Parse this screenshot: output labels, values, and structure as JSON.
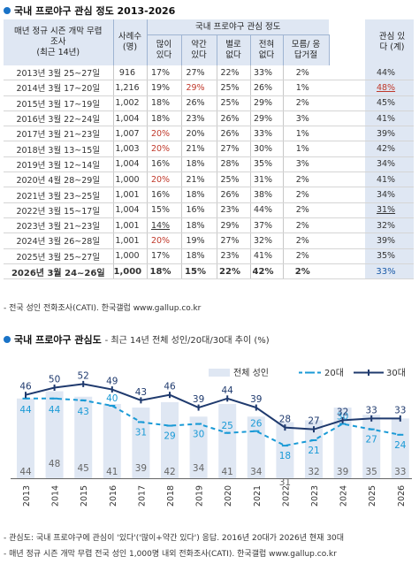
{
  "table_title": "국내 프로야구 관심 정도 2013-2026",
  "table_headers": {
    "period": "매년 정규 시즌 개막 무렵 조사",
    "period_sub": "(최근 14년)",
    "sample": "사례수 (명)",
    "group": "국내 프로야구 관심 정도",
    "cols": [
      "많이 있다",
      "약간 있다",
      "별로 없다",
      "전혀 없다",
      "모름/ 응답거절"
    ],
    "interest": "관심 있다 (계)"
  },
  "table_rows": [
    {
      "period": "2013년 3월 25~27일",
      "n": "916",
      "a": "17%",
      "b": "27%",
      "c": "22%",
      "d": "33%",
      "e": "2%",
      "sum": "44%"
    },
    {
      "period": "2014년 3월 17~20일",
      "n": "1,216",
      "a": "19%",
      "b": "29%",
      "c": "25%",
      "d": "26%",
      "e": "1%",
      "sum": "48%"
    },
    {
      "period": "2015년 3월 17~19일",
      "n": "1,002",
      "a": "18%",
      "b": "26%",
      "c": "25%",
      "d": "29%",
      "e": "2%",
      "sum": "45%"
    },
    {
      "period": "2016년 3월 22~24일",
      "n": "1,004",
      "a": "18%",
      "b": "23%",
      "c": "26%",
      "d": "29%",
      "e": "3%",
      "sum": "41%"
    },
    {
      "period": "2017년 3월 21~23일",
      "n": "1,007",
      "a": "20%",
      "b": "20%",
      "c": "26%",
      "d": "33%",
      "e": "1%",
      "sum": "39%"
    },
    {
      "period": "2018년 3월 13~15일",
      "n": "1,003",
      "a": "20%",
      "b": "21%",
      "c": "27%",
      "d": "30%",
      "e": "1%",
      "sum": "42%"
    },
    {
      "period": "2019년 3월 12~14일",
      "n": "1,004",
      "a": "16%",
      "b": "18%",
      "c": "28%",
      "d": "35%",
      "e": "3%",
      "sum": "34%"
    },
    {
      "period": "2020년 4월 28~29일",
      "n": "1,000",
      "a": "20%",
      "b": "21%",
      "c": "25%",
      "d": "31%",
      "e": "2%",
      "sum": "41%"
    },
    {
      "period": "2021년 3월 23~25일",
      "n": "1,001",
      "a": "16%",
      "b": "18%",
      "c": "26%",
      "d": "38%",
      "e": "2%",
      "sum": "34%"
    },
    {
      "period": "2022년 3월 15~17일",
      "n": "1,004",
      "a": "15%",
      "b": "16%",
      "c": "23%",
      "d": "44%",
      "e": "2%",
      "sum": "31%"
    },
    {
      "period": "2023년 3월 21~23일",
      "n": "1,001",
      "a": "14%",
      "b": "18%",
      "c": "29%",
      "d": "37%",
      "e": "2%",
      "sum": "32%"
    },
    {
      "period": "2024년 3월 26~28일",
      "n": "1,001",
      "a": "20%",
      "b": "19%",
      "c": "27%",
      "d": "32%",
      "e": "2%",
      "sum": "39%"
    },
    {
      "period": "2025년 3월 25~27일",
      "n": "1,000",
      "a": "17%",
      "b": "18%",
      "c": "23%",
      "d": "41%",
      "e": "2%",
      "sum": "35%"
    }
  ],
  "table_last": {
    "period": "2026년 3월 24~26일",
    "n": "1,000",
    "a": "18%",
    "b": "15%",
    "c": "22%",
    "d": "42%",
    "e": "2%",
    "sum": "33%"
  },
  "table_note": "- 전국 성인 전화조사(CATI). 한국갤럽 www.gallup.co.kr",
  "chart_title": "국내 프로야구 관심도",
  "chart_subtitle": "- 최근 14년 전체 성인/20대/30대 추이 (%)",
  "chart_data": {
    "type": "bar",
    "categories": [
      "2013",
      "2014",
      "2015",
      "2016",
      "2017",
      "2018",
      "2019",
      "2020",
      "2021",
      "2022",
      "2023",
      "2024",
      "2025",
      "2026"
    ],
    "series": [
      {
        "name": "전체 성인",
        "type": "bar",
        "values": [
          44,
          48,
          45,
          41,
          39,
          42,
          34,
          41,
          34,
          31,
          32,
          39,
          35,
          33
        ],
        "color": "#dfe7f3"
      },
      {
        "name": "20대",
        "type": "line",
        "dashed": true,
        "values": [
          44,
          44,
          43,
          40,
          31,
          29,
          30,
          25,
          26,
          18,
          21,
          30,
          27,
          24
        ],
        "color": "#1a9ad6"
      },
      {
        "name": "30대",
        "type": "line",
        "values": [
          46,
          50,
          52,
          49,
          43,
          46,
          39,
          44,
          39,
          28,
          27,
          32,
          33,
          33
        ],
        "color": "#1f3a6e"
      }
    ],
    "ylim": [
      0,
      60
    ],
    "legend": "top-right"
  },
  "footer_notes": [
    "- 관심도: 국내 프로야구에 관심이 '있다'('많이+약간 있다') 응답. 2016년 20대가 2026년 현재 30대",
    "- 매년 정규 시즌 개막 무렵 전국 성인 1,000명 내외 전화조사(CATI). 한국갤럽 www.gallup.co.kr"
  ],
  "colors": {
    "accent": "#1a73c7",
    "highlight": "#c0392b",
    "header_bg": "#dfe7f3"
  }
}
